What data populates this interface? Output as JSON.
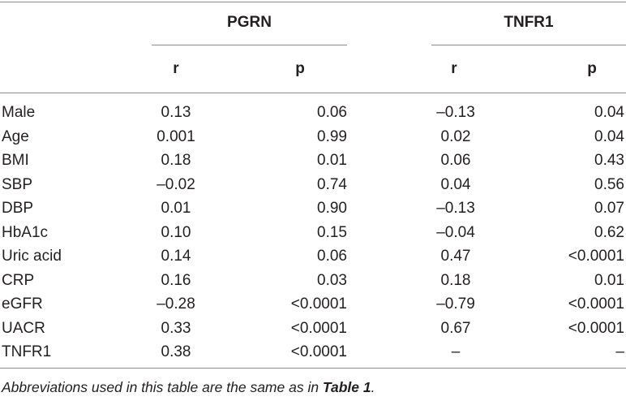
{
  "table": {
    "groups": {
      "pgrn": "PGRN",
      "tnfr1": "TNFR1"
    },
    "subheaders": {
      "pgrn_r": "r",
      "pgrn_p": "p",
      "tnfr1_r": "r",
      "tnfr1_p": "p"
    },
    "rows": [
      {
        "label": "Male",
        "pgrn_r": "0.13",
        "pgrn_p": "0.06",
        "tnfr1_r": "–0.13",
        "tnfr1_p": "0.04"
      },
      {
        "label": "Age",
        "pgrn_r": "0.001",
        "pgrn_p": "0.99",
        "tnfr1_r": "0.02",
        "tnfr1_p": "0.04"
      },
      {
        "label": "BMI",
        "pgrn_r": "0.18",
        "pgrn_p": "0.01",
        "tnfr1_r": "0.06",
        "tnfr1_p": "0.43"
      },
      {
        "label": "SBP",
        "pgrn_r": "–0.02",
        "pgrn_p": "0.74",
        "tnfr1_r": "0.04",
        "tnfr1_p": "0.56"
      },
      {
        "label": "DBP",
        "pgrn_r": "0.01",
        "pgrn_p": "0.90",
        "tnfr1_r": "–0.13",
        "tnfr1_p": "0.07"
      },
      {
        "label": "HbA1c",
        "pgrn_r": "0.10",
        "pgrn_p": "0.15",
        "tnfr1_r": "–0.04",
        "tnfr1_p": "0.62"
      },
      {
        "label": "Uric acid",
        "pgrn_r": "0.14",
        "pgrn_p": "0.06",
        "tnfr1_r": "0.47",
        "tnfr1_p": "<0.0001"
      },
      {
        "label": "CRP",
        "pgrn_r": "0.16",
        "pgrn_p": "0.03",
        "tnfr1_r": "0.18",
        "tnfr1_p": "0.01"
      },
      {
        "label": "eGFR",
        "pgrn_r": "–0.28",
        "pgrn_p": "<0.0001",
        "tnfr1_r": "–0.79",
        "tnfr1_p": "<0.0001"
      },
      {
        "label": "UACR",
        "pgrn_r": "0.33",
        "pgrn_p": "<0.0001",
        "tnfr1_r": "0.67",
        "tnfr1_p": "<0.0001"
      },
      {
        "label": "TNFR1",
        "pgrn_r": "0.38",
        "pgrn_p": "<0.0001",
        "tnfr1_r": "–",
        "tnfr1_p": "–"
      }
    ]
  },
  "footnote": {
    "text": "Abbreviations used in this table are the same as in ",
    "ref": "Table 1",
    "end": "."
  }
}
